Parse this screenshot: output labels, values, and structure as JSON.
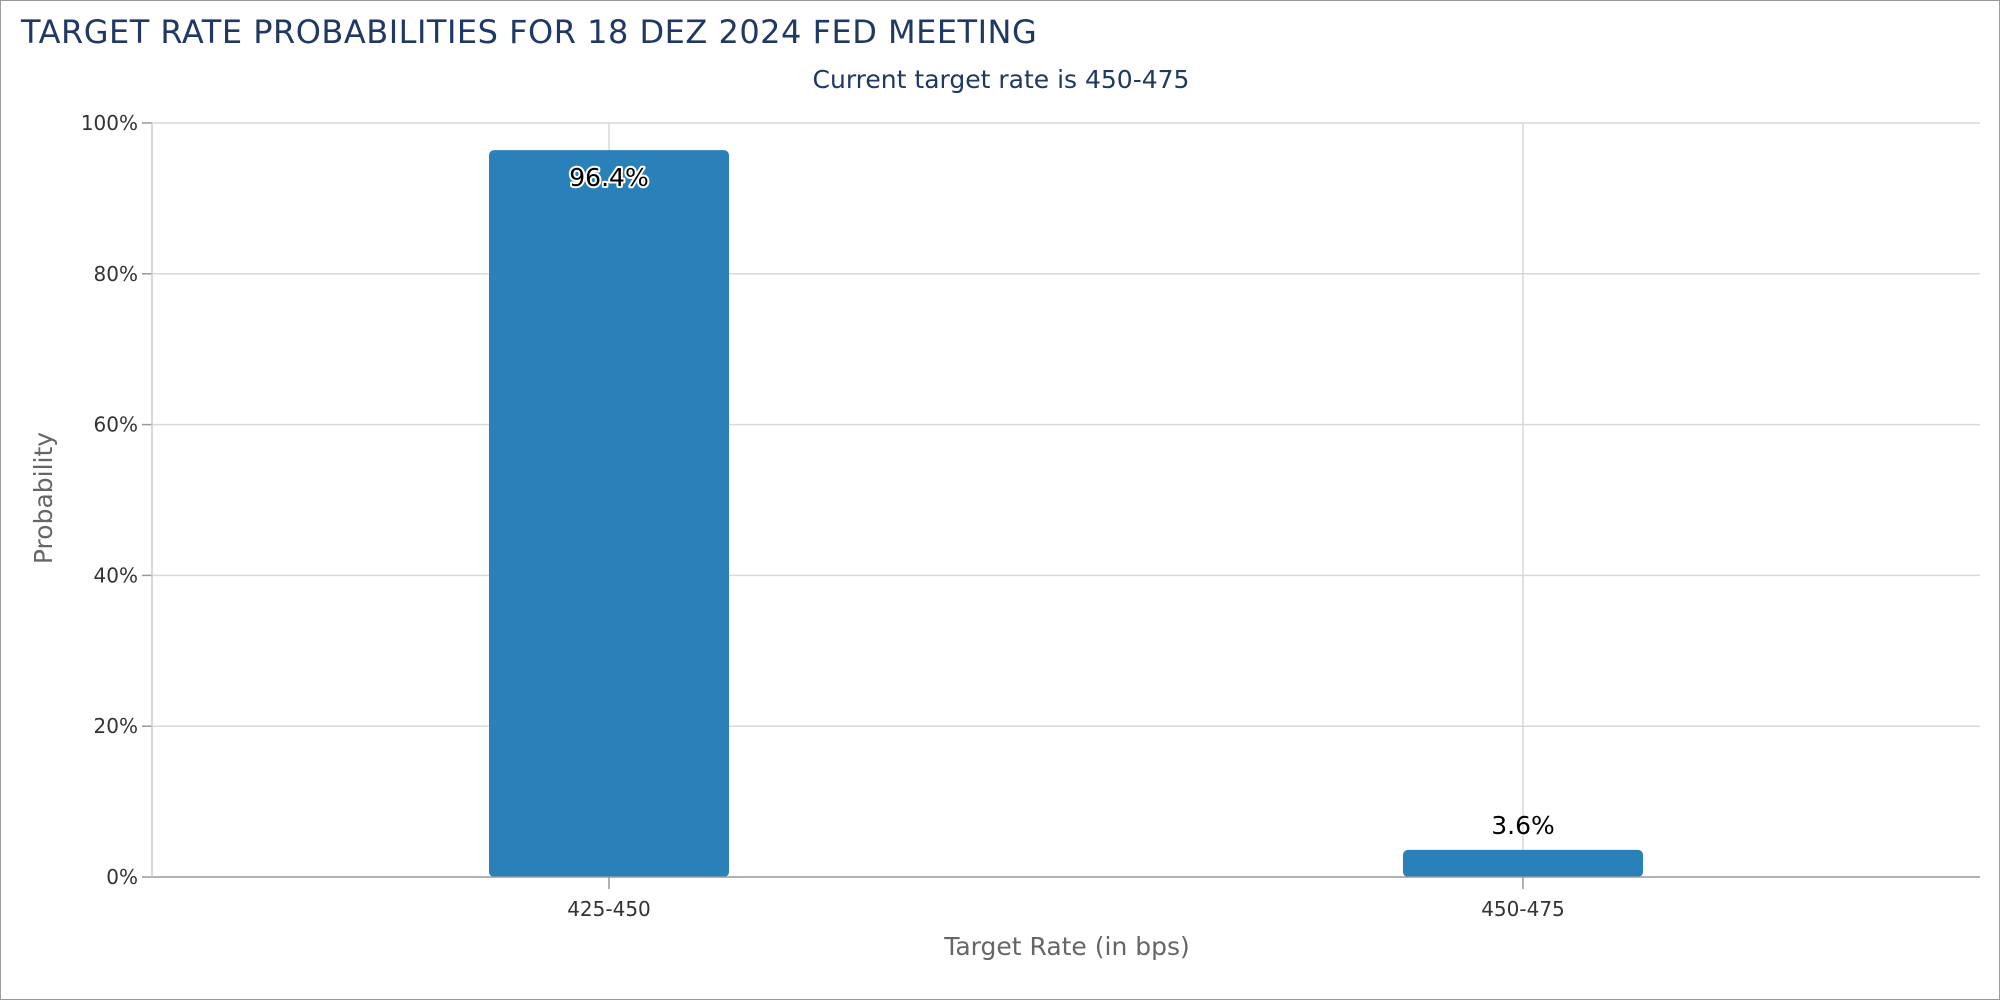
{
  "chart_data": {
    "type": "bar",
    "title": "TARGET RATE PROBABILITIES FOR 18 DEZ 2024 FED MEETING",
    "subtitle": "Current target rate is 450-475",
    "xlabel": "Target Rate (in bps)",
    "ylabel": "Probability",
    "categories": [
      "425-450",
      "450-475"
    ],
    "values": [
      96.4,
      3.6
    ],
    "data_labels": [
      "96.4%",
      "3.6%"
    ],
    "ylim": [
      0,
      100
    ],
    "yticks": [
      0,
      20,
      40,
      60,
      80,
      100
    ],
    "ytick_labels": [
      "0%",
      "20%",
      "40%",
      "60%",
      "80%",
      "100%"
    ],
    "grid": true,
    "legend": "none",
    "colors": {
      "bar": "#2a80b9",
      "title": "#1f3864",
      "grid": "#d9d9d9"
    }
  }
}
